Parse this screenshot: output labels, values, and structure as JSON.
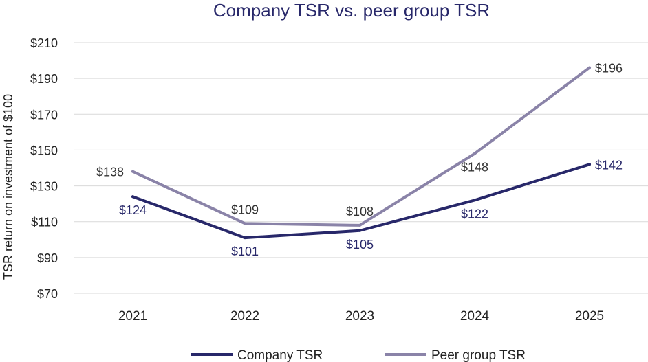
{
  "chart_data": {
    "type": "line",
    "title": "Company TSR vs. peer group TSR",
    "xlabel": "",
    "ylabel": "TSR return on investment of $100",
    "categories": [
      "2021",
      "2022",
      "2023",
      "2024",
      "2025"
    ],
    "ylim": [
      70,
      210
    ],
    "yticks": [
      70,
      90,
      110,
      130,
      150,
      170,
      190,
      210
    ],
    "ytick_labels": [
      "$70",
      "$90",
      "$110",
      "$130",
      "$150",
      "$170",
      "$190",
      "$210"
    ],
    "grid": true,
    "legend": "bottom-center",
    "series": [
      {
        "name": "Company TSR",
        "color": "#28286a",
        "values": [
          124,
          101,
          105,
          122,
          142
        ],
        "labels": [
          "$124",
          "$101",
          "$105",
          "$122",
          "$142"
        ],
        "label_position": [
          "below",
          "below",
          "below",
          "below",
          "right"
        ]
      },
      {
        "name": "Peer group TSR",
        "color": "#8a83a8",
        "values": [
          138,
          109,
          108,
          148,
          196
        ],
        "labels": [
          "$138",
          "$109",
          "$108",
          "$148",
          "$196"
        ],
        "label_position": [
          "left",
          "above",
          "above",
          "below",
          "right"
        ]
      }
    ]
  }
}
